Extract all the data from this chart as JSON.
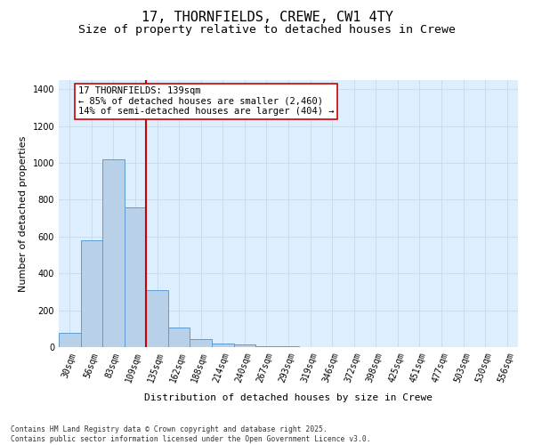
{
  "title": "17, THORNFIELDS, CREWE, CW1 4TY",
  "subtitle": "Size of property relative to detached houses in Crewe",
  "xlabel": "Distribution of detached houses by size in Crewe",
  "ylabel": "Number of detached properties",
  "categories": [
    "30sqm",
    "56sqm",
    "83sqm",
    "109sqm",
    "135sqm",
    "162sqm",
    "188sqm",
    "214sqm",
    "240sqm",
    "267sqm",
    "293sqm",
    "319sqm",
    "346sqm",
    "372sqm",
    "398sqm",
    "425sqm",
    "451sqm",
    "477sqm",
    "503sqm",
    "530sqm",
    "556sqm"
  ],
  "values": [
    75,
    580,
    1020,
    760,
    310,
    105,
    45,
    20,
    15,
    5,
    3,
    2,
    1,
    1,
    1,
    1,
    1,
    1,
    1,
    1,
    1
  ],
  "bar_color": "#b8d0e8",
  "bar_edge_color": "#5b9bd5",
  "vline_x_index": 4,
  "vline_color": "#cc0000",
  "annotation_text": "17 THORNFIELDS: 139sqm\n← 85% of detached houses are smaller (2,460)\n14% of semi-detached houses are larger (404) →",
  "annotation_box_color": "#cc0000",
  "annotation_bg_color": "#ffffff",
  "ylim": [
    0,
    1450
  ],
  "yticks": [
    0,
    200,
    400,
    600,
    800,
    1000,
    1200,
    1400
  ],
  "grid_color": "#c8daea",
  "background_color": "#ddeeff",
  "footer_text": "Contains HM Land Registry data © Crown copyright and database right 2025.\nContains public sector information licensed under the Open Government Licence v3.0.",
  "title_fontsize": 11,
  "subtitle_fontsize": 9.5,
  "axis_label_fontsize": 8,
  "tick_fontsize": 7,
  "annotation_fontsize": 7.5,
  "footer_fontsize": 5.8
}
